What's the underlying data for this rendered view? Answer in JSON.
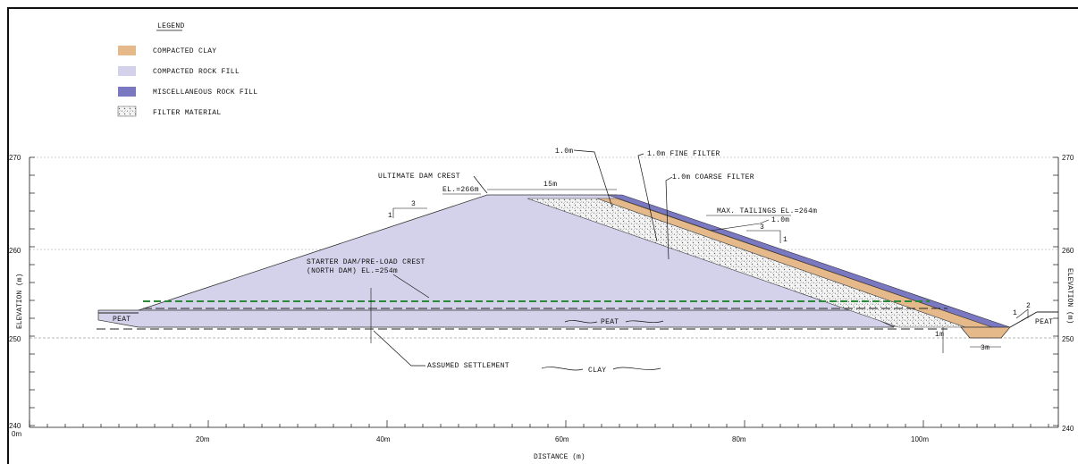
{
  "legend": {
    "title": "LEGEND",
    "items": [
      {
        "label": "COMPACTED CLAY",
        "color": "#e6b98a"
      },
      {
        "label": "COMPACTED ROCK FILL",
        "color": "#d3d2ea"
      },
      {
        "label": "MISCELLANEOUS ROCK FILL",
        "color": "#7b78c2"
      },
      {
        "label": "FILTER MATERIAL",
        "color": "hatched"
      }
    ]
  },
  "axes": {
    "x_label": "DISTANCE (m)",
    "y_label": "ELEVATION (m)",
    "x_ticks": [
      "0m",
      "20m",
      "40m",
      "60m",
      "80m",
      "100m"
    ],
    "y_ticks_left": [
      "270",
      "260",
      "250",
      "240"
    ],
    "y_ticks_right": [
      "270",
      "260",
      "250",
      "240"
    ]
  },
  "annotations": {
    "ultimate_crest": "ULTIMATE DAM CREST",
    "ultimate_crest_el": "EL.=266m",
    "crest_width": "15m",
    "fine_filter_width": "1.0m",
    "fine_filter": "1.0m FINE FILTER",
    "coarse_filter": "1.0m COARSE FILTER",
    "max_tailings": "MAX. TAILINGS EL.=264m",
    "clay_width": "1.0m",
    "starter_dam_1": "STARTER DAM/PRE-LOAD CREST",
    "starter_dam_2": "(NORTH DAM) EL.=254m",
    "assumed_settlement": "ASSUMED SETTLEMENT",
    "peat": "PEAT",
    "clay": "CLAY",
    "slope_1": "1",
    "slope_3": "3",
    "slope_2": "2",
    "toe_depth": "1m",
    "toe_width": "3m"
  }
}
